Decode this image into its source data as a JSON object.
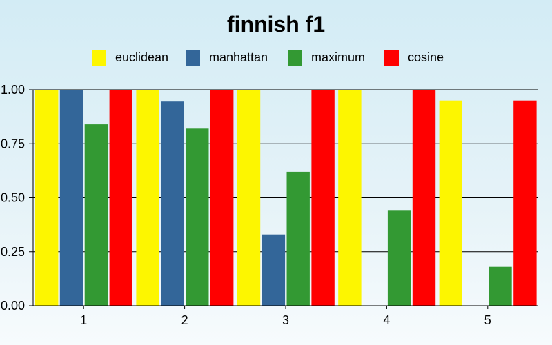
{
  "chart_data": {
    "type": "bar",
    "title": "finnish f1",
    "xlabel": "",
    "ylabel": "",
    "categories": [
      "1",
      "2",
      "3",
      "4",
      "5"
    ],
    "ylim": [
      0,
      1
    ],
    "yticks": [
      "0.00",
      "0.25",
      "0.50",
      "0.75",
      "1.00"
    ],
    "grid": "horizontal",
    "legend_position": "top-center",
    "series": [
      {
        "name": "euclidean",
        "color": "#fdf600",
        "values": [
          1.0,
          1.0,
          1.0,
          1.0,
          0.95
        ]
      },
      {
        "name": "manhattan",
        "color": "#336699",
        "values": [
          1.0,
          0.945,
          0.33,
          0.0,
          0.0
        ]
      },
      {
        "name": "maximum",
        "color": "#339933",
        "values": [
          0.84,
          0.82,
          0.62,
          0.44,
          0.18
        ]
      },
      {
        "name": "cosine",
        "color": "#ff0000",
        "values": [
          1.0,
          1.0,
          1.0,
          1.0,
          0.95
        ]
      }
    ]
  }
}
